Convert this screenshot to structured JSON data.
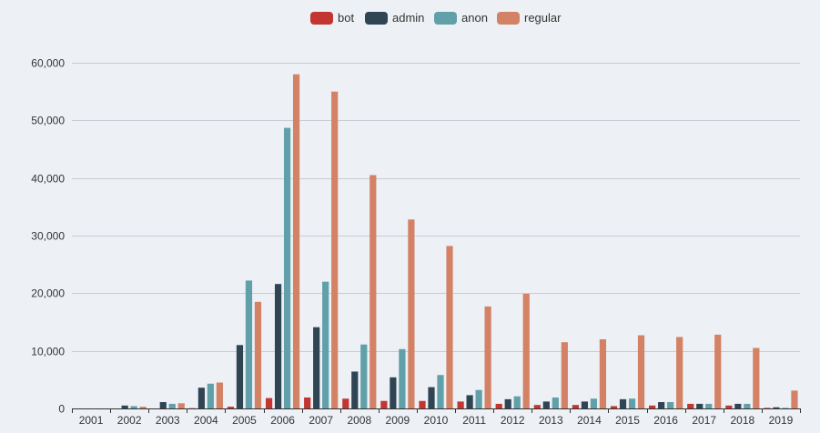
{
  "colors": {
    "background": "#edf0f5",
    "grid": "#c9cdd3",
    "axis": "#333333",
    "bot": "#c23531",
    "admin": "#2f4554",
    "anon": "#61a0a8",
    "regular": "#d48265"
  },
  "chart_data": {
    "type": "bar",
    "title": "",
    "xlabel": "",
    "ylabel": "",
    "ylim": [
      0,
      60000
    ],
    "yticks": [
      0,
      10000,
      20000,
      30000,
      40000,
      50000,
      60000
    ],
    "ytick_labels": [
      "0",
      "10,000",
      "20,000",
      "30,000",
      "40,000",
      "50,000",
      "60,000"
    ],
    "grid": true,
    "legend_position": "top-center",
    "categories": [
      "2001",
      "2002",
      "2003",
      "2004",
      "2005",
      "2006",
      "2007",
      "2008",
      "2009",
      "2010",
      "2011",
      "2012",
      "2013",
      "2014",
      "2015",
      "2016",
      "2017",
      "2018",
      "2019"
    ],
    "series": [
      {
        "name": "bot",
        "color": "#c23531",
        "values": [
          0,
          0,
          0,
          50,
          300,
          1800,
          1900,
          1700,
          1300,
          1300,
          1200,
          800,
          600,
          600,
          400,
          500,
          800,
          500,
          100
        ]
      },
      {
        "name": "admin",
        "color": "#2f4554",
        "values": [
          0,
          500,
          1100,
          3600,
          11000,
          21600,
          14100,
          6400,
          5400,
          3700,
          2300,
          1600,
          1200,
          1200,
          1600,
          1100,
          800,
          800,
          200
        ]
      },
      {
        "name": "anon",
        "color": "#61a0a8",
        "values": [
          0,
          400,
          800,
          4300,
          22200,
          48700,
          22000,
          11100,
          10300,
          5800,
          3200,
          2100,
          1900,
          1700,
          1700,
          1100,
          800,
          800,
          100
        ]
      },
      {
        "name": "regular",
        "color": "#d48265",
        "values": [
          0,
          300,
          900,
          4500,
          18500,
          58000,
          55000,
          40500,
          32800,
          28200,
          17700,
          19900,
          11500,
          12000,
          12700,
          12400,
          12800,
          10500,
          3100
        ]
      }
    ]
  }
}
